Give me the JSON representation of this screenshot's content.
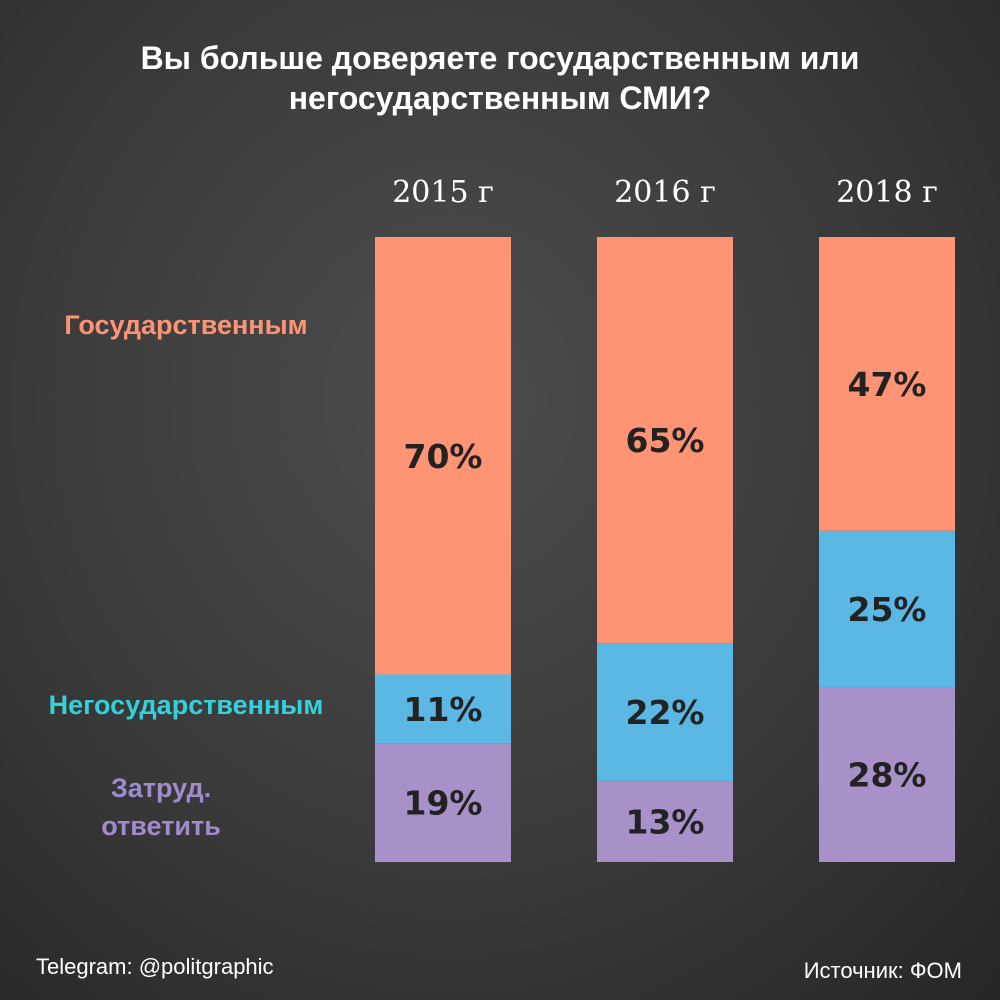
{
  "title_line1": "Вы больше доверяете государственным или",
  "title_line2": "негосударственным СМИ?",
  "footer": {
    "telegram": "Telegram: @politgraphic",
    "source": "Источник: ФОМ"
  },
  "colors": {
    "gov": "#ff9474",
    "nongov": "#5bb7e3",
    "hard": "#a890c8",
    "gov_label": "#ff9474",
    "nongov_label": "#35d1db",
    "hard_label": "#a18bcb",
    "value_text": "#222222"
  },
  "chart_data": {
    "type": "bar",
    "stacked": true,
    "normalized_percent": true,
    "categories": [
      "2015 г",
      "2016 г",
      "2018 г"
    ],
    "series": [
      {
        "name": "Затруд. ответить",
        "values": [
          19,
          13,
          28
        ],
        "labels": [
          "19%",
          "13%",
          "28%"
        ]
      },
      {
        "name": "Негосударственным",
        "values": [
          11,
          22,
          25
        ],
        "labels": [
          "11%",
          "22%",
          "25%"
        ]
      },
      {
        "name": "Государственным",
        "values": [
          70,
          65,
          47
        ],
        "labels": [
          "70%",
          "65%",
          "47%"
        ]
      }
    ],
    "legend_placement": "left, aligned with segments",
    "grid": false
  }
}
